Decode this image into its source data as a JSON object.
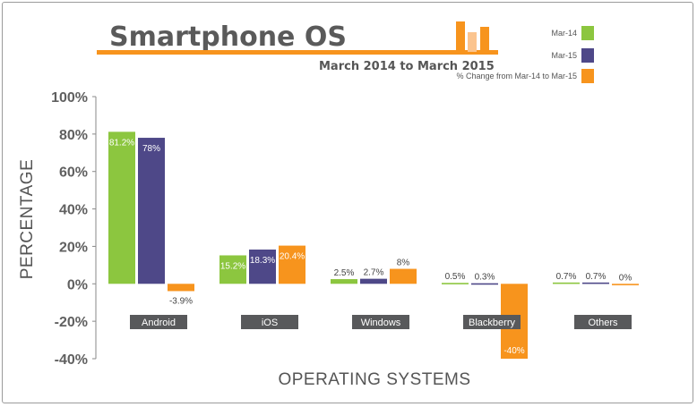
{
  "title": "Smartphone OS",
  "subtitle": "March 2014 to March 2015",
  "colors": {
    "mar14": "#8cc63f",
    "mar15": "#4e4888",
    "change": "#f7941d",
    "title_bar": "#f7941d",
    "category_label_bg": "#58595b"
  },
  "chart_data": {
    "type": "bar",
    "xlabel": "OPERATING SYSTEMS",
    "ylabel": "PERCENTAGE",
    "ylim": [
      -40,
      100
    ],
    "yticks": [
      "100%",
      "80%",
      "60%",
      "40%",
      "20%",
      "0%",
      "-20%",
      "-40%"
    ],
    "ytick_values": [
      100,
      80,
      60,
      40,
      20,
      0,
      -20,
      -40
    ],
    "grid": false,
    "legend_position": "top-right",
    "categories": [
      "Android",
      "iOS",
      "Windows",
      "Blackberry",
      "Others"
    ],
    "series": [
      {
        "name": "Mar-14",
        "values": [
          81.2,
          15.2,
          2.5,
          0.5,
          0.7
        ],
        "labels": [
          "81.2%",
          "15.2%",
          "2.5%",
          "0.5%",
          "0.7%"
        ]
      },
      {
        "name": "Mar-15",
        "values": [
          78,
          18.3,
          2.7,
          0.3,
          0.7
        ],
        "labels": [
          "78%",
          "18.3%",
          "2.7%",
          "0.3%",
          "0.7%"
        ]
      },
      {
        "name": "% Change from Mar-14 to Mar-15",
        "values": [
          -3.9,
          20.4,
          8,
          -40,
          0
        ],
        "labels": [
          "-3.9%",
          "20.4%",
          "8%",
          "-40%",
          "0%"
        ]
      }
    ]
  }
}
